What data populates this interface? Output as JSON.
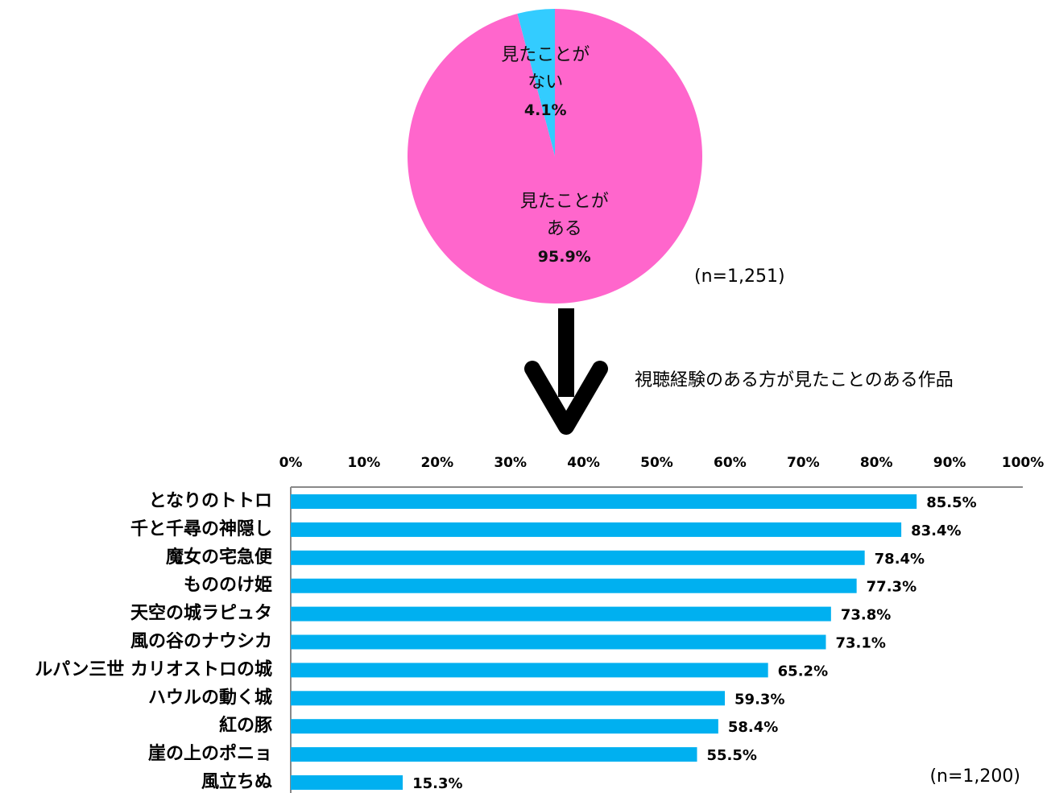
{
  "chart_data": [
    {
      "type": "pie",
      "categories": [
        "見たことがない",
        "見たことがある"
      ],
      "values": [
        4.1,
        95.9
      ],
      "value_labels": [
        "4.1%",
        "95.9%"
      ],
      "colors": [
        "#33ccff",
        "#ff66cc"
      ],
      "note": "(n=1,251)"
    },
    {
      "type": "bar",
      "orientation": "horizontal",
      "subtitle": "視聴経験のある方が見たことのある作品",
      "categories": [
        "となりのトトロ",
        "千と千尋の神隠し",
        "魔女の宅急便",
        "もののけ姫",
        "天空の城ラピュタ",
        "風の谷のナウシカ",
        "ルパン三世 カリオストロの城",
        "ハウルの動く城",
        "紅の豚",
        "崖の上のポニョ",
        "風立ちぬ"
      ],
      "values": [
        85.5,
        83.4,
        78.4,
        77.3,
        73.8,
        73.1,
        65.2,
        59.3,
        58.4,
        55.5,
        15.3
      ],
      "value_labels": [
        "85.5%",
        "83.4%",
        "78.4%",
        "77.3%",
        "73.8%",
        "73.1%",
        "65.2%",
        "59.3%",
        "58.4%",
        "55.5%",
        "15.3%"
      ],
      "color": "#00b0f0",
      "xlim": [
        0,
        100
      ],
      "xticks": [
        {
          "value": 0,
          "label": "0%"
        },
        {
          "value": 10,
          "label": "10%"
        },
        {
          "value": 20,
          "label": "20%"
        },
        {
          "value": 30,
          "label": "30%"
        },
        {
          "value": 40,
          "label": "40%"
        },
        {
          "value": 50,
          "label": "50%"
        },
        {
          "value": 60,
          "label": "60%"
        },
        {
          "value": 70,
          "label": "70%"
        },
        {
          "value": 80,
          "label": "80%"
        },
        {
          "value": 90,
          "label": "90%"
        },
        {
          "value": 100,
          "label": "100%"
        }
      ],
      "note": "(n=1,200)"
    }
  ]
}
